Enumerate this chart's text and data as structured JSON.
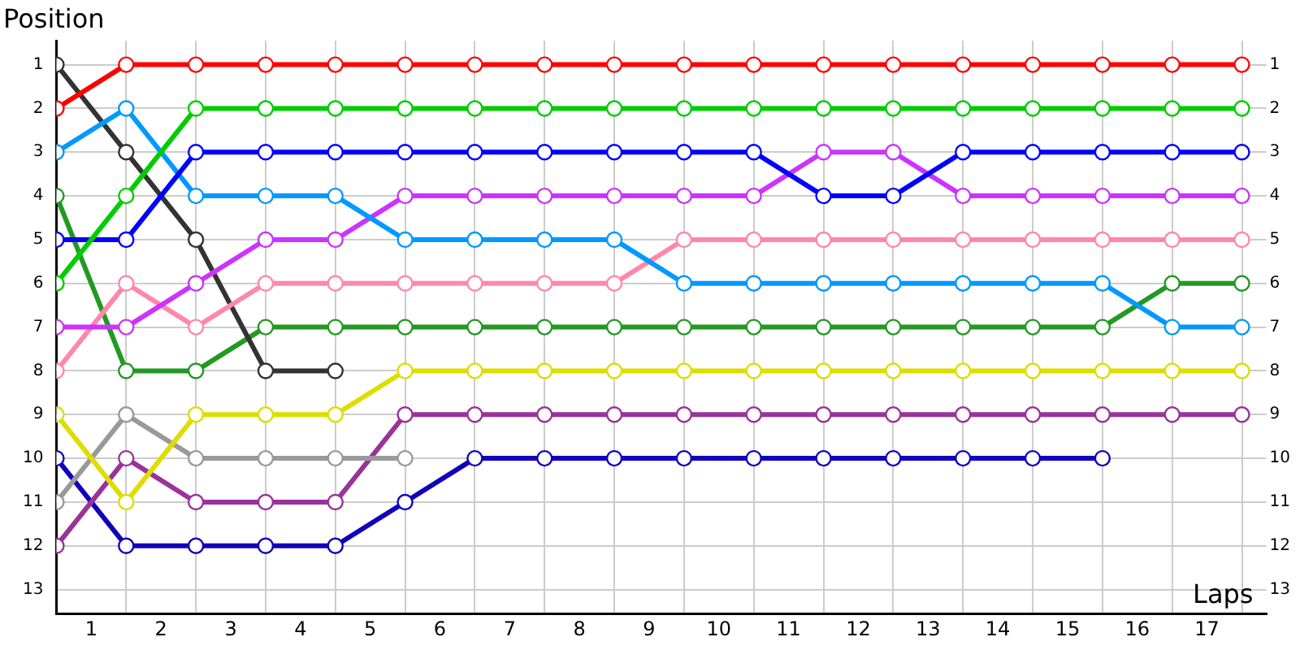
{
  "chart_data": {
    "type": "line",
    "xlabel": "Laps",
    "ylabel": "Position",
    "x": [
      0,
      1,
      2,
      3,
      4,
      5,
      6,
      7,
      8,
      9,
      10,
      11,
      12,
      13,
      14,
      15,
      16,
      17
    ],
    "series": [
      {
        "color": "#ff0000",
        "values": [
          2,
          1,
          1,
          1,
          1,
          1,
          1,
          1,
          1,
          1,
          1,
          1,
          1,
          1,
          1,
          1,
          1,
          1
        ]
      },
      {
        "color": "#00cc00",
        "values": [
          6,
          4,
          2,
          2,
          2,
          2,
          2,
          2,
          2,
          2,
          2,
          2,
          2,
          2,
          2,
          2,
          2,
          2
        ]
      },
      {
        "color": "#0000ff",
        "values": [
          5,
          5,
          3,
          3,
          3,
          3,
          3,
          3,
          3,
          3,
          3,
          4,
          4,
          3,
          3,
          3,
          3,
          3
        ]
      },
      {
        "color": "#0099ff",
        "values": [
          3,
          2,
          4,
          4,
          4,
          5,
          5,
          5,
          5,
          6,
          6,
          6,
          6,
          6,
          6,
          6,
          7,
          7
        ]
      },
      {
        "color": "#cc33ff",
        "values": [
          7,
          7,
          6,
          5,
          5,
          4,
          4,
          4,
          4,
          4,
          4,
          3,
          3,
          4,
          4,
          4,
          4,
          4
        ]
      },
      {
        "color": "#ff88aa",
        "values": [
          8,
          6,
          7,
          6,
          6,
          6,
          6,
          6,
          6,
          5,
          5,
          5,
          5,
          5,
          5,
          5,
          5,
          5
        ]
      },
      {
        "color": "#333333",
        "values": [
          1,
          3,
          5,
          8,
          8,
          null,
          null,
          null,
          null,
          null,
          null,
          null,
          null,
          null,
          null,
          null,
          null,
          null
        ]
      },
      {
        "color": "#229922",
        "values": [
          4,
          8,
          8,
          7,
          7,
          7,
          7,
          7,
          7,
          7,
          7,
          7,
          7,
          7,
          7,
          7,
          6,
          6
        ]
      },
      {
        "color": "#dddd00",
        "values": [
          9,
          11,
          9,
          9,
          9,
          8,
          8,
          8,
          8,
          8,
          8,
          8,
          8,
          8,
          8,
          8,
          8,
          8
        ]
      },
      {
        "color": "#999999",
        "values": [
          11,
          9,
          10,
          10,
          10,
          10,
          null,
          null,
          null,
          null,
          null,
          null,
          null,
          null,
          null,
          null,
          null,
          null
        ]
      },
      {
        "color": "#993399",
        "values": [
          12,
          10,
          11,
          11,
          11,
          9,
          9,
          9,
          9,
          9,
          9,
          9,
          9,
          9,
          9,
          9,
          9,
          9
        ]
      },
      {
        "color": "#1100bb",
        "values": [
          10,
          12,
          12,
          12,
          12,
          11,
          10,
          10,
          10,
          10,
          10,
          10,
          10,
          10,
          10,
          10,
          null,
          null
        ]
      }
    ],
    "xlim": [
      0,
      17.35
    ],
    "xticks": [
      {
        "value": 0,
        "label": null
      },
      {
        "value": 0.5,
        "label": "1"
      },
      {
        "value": 1,
        "label": null
      },
      {
        "value": 1.5,
        "label": "2"
      },
      {
        "value": 2,
        "label": null
      },
      {
        "value": 2.5,
        "label": "3"
      },
      {
        "value": 3,
        "label": null
      },
      {
        "value": 3.5,
        "label": "4"
      },
      {
        "value": 4,
        "label": null
      },
      {
        "value": 4.5,
        "label": "5"
      },
      {
        "value": 5,
        "label": null
      },
      {
        "value": 5.5,
        "label": "6"
      },
      {
        "value": 6,
        "label": null
      },
      {
        "value": 6.5,
        "label": "7"
      },
      {
        "value": 7,
        "label": null
      },
      {
        "value": 7.5,
        "label": "8"
      },
      {
        "value": 8,
        "label": null
      },
      {
        "value": 8.5,
        "label": "9"
      },
      {
        "value": 9,
        "label": null
      },
      {
        "value": 9.5,
        "label": "10"
      },
      {
        "value": 10,
        "label": null
      },
      {
        "value": 10.5,
        "label": "11"
      },
      {
        "value": 11,
        "label": null
      },
      {
        "value": 11.5,
        "label": "12"
      },
      {
        "value": 12,
        "label": null
      },
      {
        "value": 12.5,
        "label": "13"
      },
      {
        "value": 13,
        "label": null
      },
      {
        "value": 13.5,
        "label": "14"
      },
      {
        "value": 14,
        "label": null
      },
      {
        "value": 14.5,
        "label": "15"
      },
      {
        "value": 15,
        "label": null
      },
      {
        "value": 15.5,
        "label": "16"
      },
      {
        "value": 16,
        "label": null
      },
      {
        "value": 16.5,
        "label": "17"
      },
      {
        "value": 17,
        "label": null
      }
    ],
    "ylim": [
      13.55,
      0.45
    ],
    "yticks": [
      1,
      2,
      3,
      4,
      5,
      6,
      7,
      8,
      9,
      10,
      11,
      12,
      13
    ],
    "y2lim": [
      13.55,
      0.45
    ],
    "y2ticks": [
      1,
      2,
      3,
      4,
      5,
      6,
      7,
      8,
      9,
      10,
      11,
      12,
      13
    ],
    "grid": true,
    "legend": false,
    "marker": "circle",
    "line_style": "solid"
  }
}
